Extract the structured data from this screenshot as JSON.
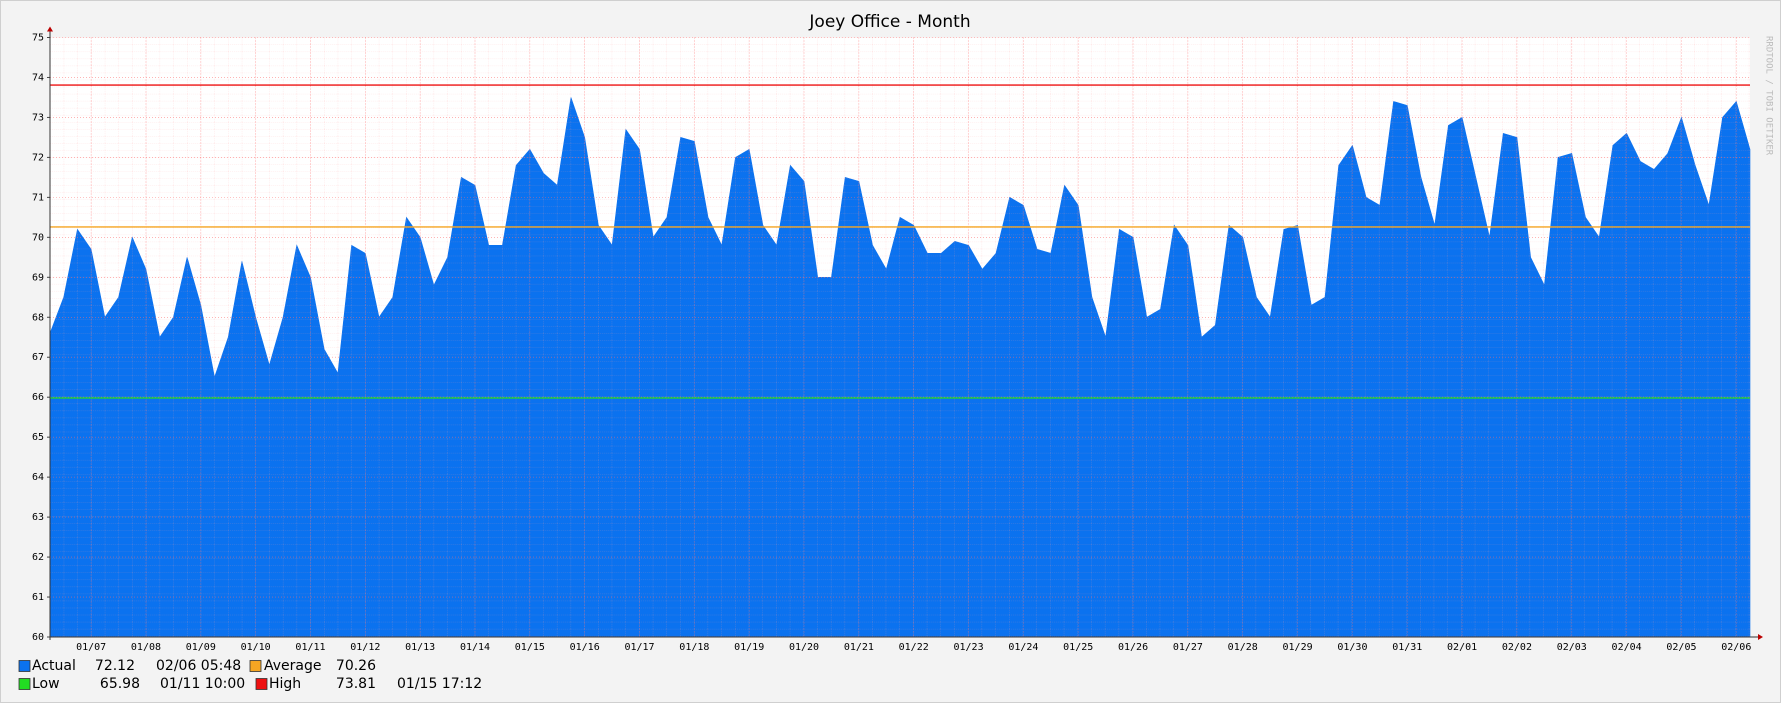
{
  "chart_data": {
    "type": "area",
    "title": "Joey Office - Month",
    "watermark": "RRDTOOL / TOBI OETIKER",
    "categories": [
      null,
      null,
      null,
      "01/07",
      null,
      null,
      null,
      "01/08",
      null,
      null,
      null,
      "01/09",
      null,
      null,
      null,
      "01/10",
      null,
      null,
      null,
      "01/11",
      null,
      null,
      null,
      "01/12",
      null,
      null,
      null,
      "01/13",
      null,
      null,
      null,
      "01/14",
      null,
      null,
      null,
      "01/15",
      null,
      null,
      null,
      "01/16",
      null,
      null,
      null,
      "01/17",
      null,
      null,
      null,
      "01/18",
      null,
      null,
      null,
      "01/19",
      null,
      null,
      null,
      "01/20",
      null,
      null,
      null,
      "01/21",
      null,
      null,
      null,
      "01/22",
      null,
      null,
      null,
      "01/23",
      null,
      null,
      null,
      "01/24",
      null,
      null,
      null,
      "01/25",
      null,
      null,
      null,
      "01/26",
      null,
      null,
      null,
      "01/27",
      null,
      null,
      null,
      "01/28",
      null,
      null,
      null,
      "01/29",
      null,
      null,
      null,
      "01/30",
      null,
      null,
      null,
      "01/31",
      null,
      null,
      null,
      "02/01",
      null,
      null,
      null,
      "02/02",
      null,
      null,
      null,
      "02/03",
      null,
      null,
      null,
      "02/04",
      null,
      null,
      null,
      "02/05",
      null,
      null,
      null,
      "02/06",
      null
    ],
    "series": [
      {
        "name": "Actual",
        "color": "#0b72ef",
        "current": 72.12,
        "current_time": "02/06 05:48",
        "values": [
          67.6,
          68.5,
          70.2,
          69.7,
          68.0,
          68.5,
          70.0,
          69.2,
          67.5,
          68.0,
          69.5,
          68.3,
          66.5,
          67.5,
          69.4,
          68.0,
          66.8,
          68.0,
          69.8,
          69.0,
          67.2,
          66.6,
          69.8,
          69.6,
          68.0,
          68.5,
          70.5,
          70.0,
          68.8,
          69.5,
          71.5,
          71.3,
          69.8,
          69.8,
          71.8,
          72.2,
          71.6,
          71.3,
          73.5,
          72.5,
          70.3,
          69.8,
          72.7,
          72.2,
          70.0,
          70.5,
          72.5,
          72.4,
          70.5,
          69.8,
          72.0,
          72.2,
          70.3,
          69.8,
          71.8,
          71.4,
          69.0,
          69.0,
          71.5,
          71.4,
          69.8,
          69.2,
          70.5,
          70.3,
          69.6,
          69.6,
          69.9,
          69.8,
          69.2,
          69.6,
          71.0,
          70.8,
          69.7,
          69.6,
          71.3,
          70.8,
          68.5,
          67.5,
          70.2,
          70.0,
          68.0,
          68.2,
          70.3,
          69.8,
          67.5,
          67.8,
          70.3,
          70.0,
          68.5,
          68.0,
          70.2,
          70.3,
          68.3,
          68.5,
          71.8,
          72.3,
          71.0,
          70.8,
          73.4,
          73.3,
          71.5,
          70.3,
          72.8,
          73.0,
          71.5,
          70.0,
          72.6,
          72.5,
          69.5,
          68.8,
          72.0,
          72.1,
          70.5,
          70.0,
          72.3,
          72.6,
          71.9,
          71.7,
          72.1,
          73.0,
          71.8,
          70.8,
          73.0,
          73.4,
          72.2
        ]
      }
    ],
    "reference_lines": [
      {
        "name": "Average",
        "color": "#f5a623",
        "value": 70.26
      },
      {
        "name": "Low",
        "color": "#22dd22",
        "value": 65.98,
        "time": "01/11 10:00"
      },
      {
        "name": "High",
        "color": "#ee1111",
        "value": 73.81,
        "time": "01/15 17:12"
      }
    ],
    "ylim": [
      60,
      75
    ],
    "yticks": [
      60,
      61,
      62,
      63,
      64,
      65,
      66,
      67,
      68,
      69,
      70,
      71,
      72,
      73,
      74,
      75
    ],
    "grid": true
  }
}
